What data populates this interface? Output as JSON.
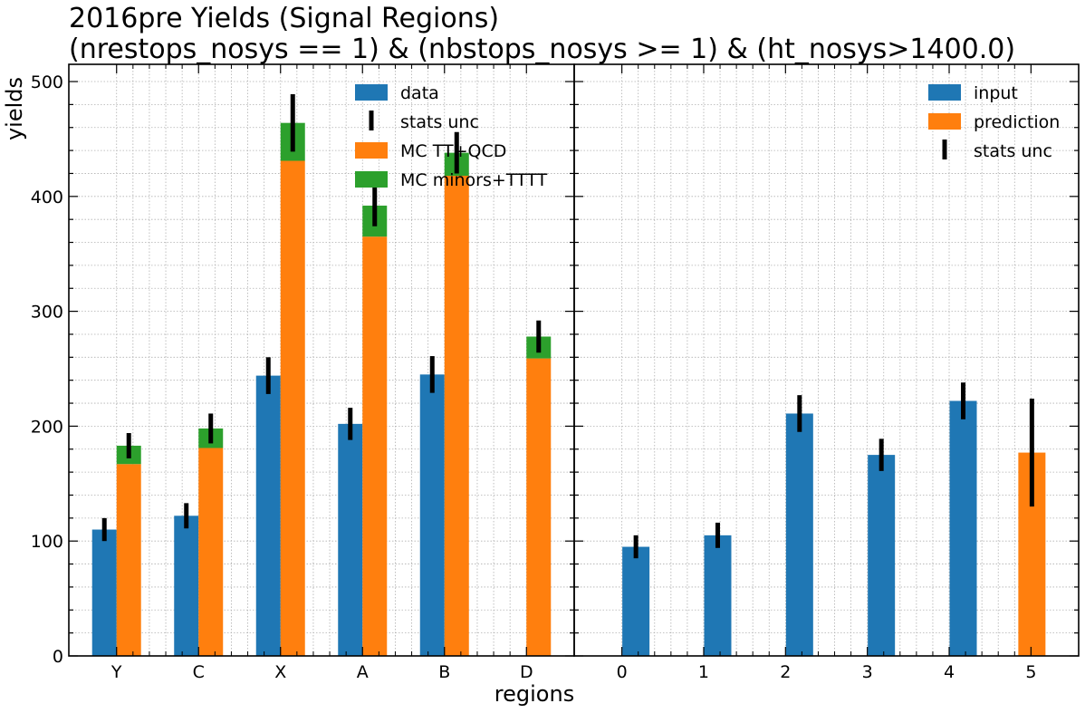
{
  "chart_data": {
    "title_line1": "2016pre Yields (Signal Regions)",
    "title_line2": "(nrestops_nosys == 1) & (nbstops_nosys >= 1) & (ht_nosys>1400.0)",
    "xlabel": "regions",
    "ylabel": "yields",
    "ylim": [
      0,
      515
    ],
    "yticks": [
      0,
      100,
      200,
      300,
      400,
      500
    ],
    "colors": {
      "data": "#1f77b4",
      "mc_ttqcd": "#ff7f0e",
      "mc_minors": "#2ca02c",
      "error": "#000000"
    },
    "panels": [
      {
        "type": "bar",
        "categories": [
          "Y",
          "C",
          "X",
          "A",
          "B",
          "D"
        ],
        "series": [
          {
            "name": "data",
            "values": [
              110,
              122,
              244,
              202,
              245,
              null
            ]
          },
          {
            "name": "MC TT+QCD",
            "values": [
              167,
              181,
              431,
              365,
              418,
              259
            ]
          },
          {
            "name": "MC minors+TTTT",
            "values": [
              16,
              17,
              33,
              27,
              20,
              19
            ]
          }
        ],
        "data_errors": [
          10,
          11,
          16,
          14,
          16,
          null
        ],
        "mc_errors": [
          11,
          13,
          25,
          18,
          18,
          14
        ],
        "legend": [
          "data",
          "stats unc",
          "MC TT+QCD",
          "MC minors+TTTT"
        ],
        "legend_loc": "upper-center"
      },
      {
        "type": "bar",
        "categories": [
          "0",
          "1",
          "2",
          "3",
          "4",
          "5"
        ],
        "series": [
          {
            "name": "input",
            "values": [
              95,
              105,
              211,
              175,
              222,
              null
            ]
          },
          {
            "name": "prediction",
            "values": [
              null,
              null,
              null,
              null,
              null,
              177
            ]
          }
        ],
        "errors": [
          10,
          11,
          16,
          14,
          16,
          47
        ],
        "legend": [
          "input",
          "prediction",
          "stats unc"
        ],
        "legend_loc": "upper-right"
      }
    ]
  }
}
